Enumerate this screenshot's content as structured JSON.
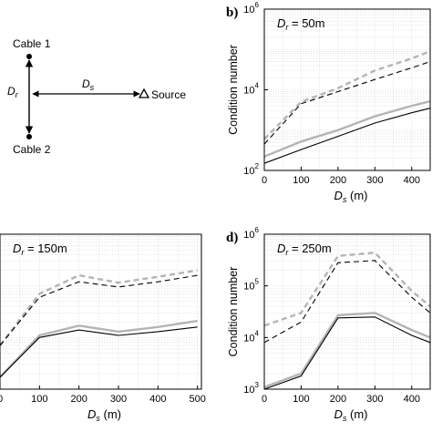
{
  "diagram": {
    "cable1_label": "Cable 1",
    "cable2_label": "Cable 2",
    "dr_label": "D",
    "dr_sub": "r",
    "ds_label": "D",
    "ds_sub": "s",
    "source_label": "Source"
  },
  "chart_data": [
    {
      "type": "line",
      "panel_letter": "b)",
      "annotation": {
        "main": "D",
        "sub": "r",
        "value": " = 50m"
      },
      "ylabel": "Condition number",
      "xlabel": {
        "main": "D",
        "sub": "s",
        "unit": " (m)"
      },
      "yscale": "log",
      "ylim": [
        100,
        1000000
      ],
      "xlim": [
        0,
        450
      ],
      "y_ticks": [
        {
          "value": 100,
          "base": "10",
          "exp": "2"
        },
        {
          "value": 10000,
          "base": "10",
          "exp": "4"
        },
        {
          "value": 1000000,
          "base": "10",
          "exp": "6"
        }
      ],
      "x_ticks": [
        {
          "value": 0,
          "label": "0"
        },
        {
          "value": 100,
          "label": "100"
        },
        {
          "value": 200,
          "label": "200"
        },
        {
          "value": 300,
          "label": "300"
        },
        {
          "value": 400,
          "label": "400"
        }
      ],
      "grid": true,
      "series": [
        {
          "style": "dashed-gray",
          "color": "#b4b4b4",
          "x": [
            0,
            100,
            200,
            300,
            400,
            450
          ],
          "y": [
            600,
            5000,
            11000,
            30000,
            60000,
            90000
          ]
        },
        {
          "style": "dashed-black",
          "color": "#000000",
          "x": [
            0,
            100,
            200,
            300,
            400,
            450
          ],
          "y": [
            450,
            4500,
            9000,
            18000,
            35000,
            50000
          ]
        },
        {
          "style": "solid-gray",
          "color": "#b4b4b4",
          "x": [
            0,
            100,
            200,
            300,
            400,
            450
          ],
          "y": [
            220,
            520,
            1000,
            2200,
            4000,
            5200
          ]
        },
        {
          "style": "solid-black",
          "color": "#000000",
          "x": [
            0,
            100,
            200,
            300,
            400,
            450
          ],
          "y": [
            150,
            330,
            700,
            1500,
            2700,
            3500
          ]
        }
      ]
    },
    {
      "type": "line",
      "panel_letter": "",
      "annotation": {
        "main": "D",
        "sub": "r",
        "value": " = 150m"
      },
      "ylabel": "",
      "xlabel": {
        "main": "D",
        "sub": "s",
        "unit": " (m)"
      },
      "yscale": "log",
      "ylim": [
        1000,
        1000000
      ],
      "xlim": [
        0,
        510
      ],
      "y_ticks": [],
      "x_ticks": [
        {
          "value": 0,
          "label": "0"
        },
        {
          "value": 100,
          "label": "100"
        },
        {
          "value": 200,
          "label": "200"
        },
        {
          "value": 300,
          "label": "300"
        },
        {
          "value": 400,
          "label": "400"
        },
        {
          "value": 500,
          "label": "500"
        }
      ],
      "grid": true,
      "series": [
        {
          "style": "dashed-gray",
          "color": "#b4b4b4",
          "x": [
            0,
            100,
            200,
            300,
            400,
            500
          ],
          "y": [
            7000,
            70000,
            160000,
            115000,
            150000,
            200000
          ]
        },
        {
          "style": "dashed-black",
          "color": "#000000",
          "x": [
            0,
            100,
            200,
            300,
            400,
            500
          ],
          "y": [
            7000,
            60000,
            120000,
            95000,
            120000,
            160000
          ]
        },
        {
          "style": "solid-gray",
          "color": "#b4b4b4",
          "x": [
            0,
            100,
            200,
            300,
            400,
            500
          ],
          "y": [
            1700,
            11000,
            17000,
            13000,
            16000,
            21000
          ]
        },
        {
          "style": "solid-black",
          "color": "#000000",
          "x": [
            0,
            100,
            200,
            300,
            400,
            500
          ],
          "y": [
            1700,
            10000,
            14000,
            11000,
            13000,
            16000
          ]
        }
      ]
    },
    {
      "type": "line",
      "panel_letter": "d)",
      "annotation": {
        "main": "D",
        "sub": "r",
        "value": " = 250m"
      },
      "ylabel": "Condition number",
      "xlabel": {
        "main": "D",
        "sub": "s",
        "unit": " (m)"
      },
      "yscale": "log",
      "ylim": [
        1000,
        1000000
      ],
      "xlim": [
        0,
        450
      ],
      "y_ticks": [
        {
          "value": 1000,
          "base": "10",
          "exp": "3"
        },
        {
          "value": 10000,
          "base": "10",
          "exp": "4"
        },
        {
          "value": 100000,
          "base": "10",
          "exp": "5"
        },
        {
          "value": 1000000,
          "base": "10",
          "exp": "6"
        }
      ],
      "x_ticks": [
        {
          "value": 0,
          "label": "0"
        },
        {
          "value": 100,
          "label": "100"
        },
        {
          "value": 200,
          "label": "200"
        },
        {
          "value": 300,
          "label": "300"
        },
        {
          "value": 400,
          "label": "400"
        }
      ],
      "grid": true,
      "series": [
        {
          "style": "dashed-gray",
          "color": "#b4b4b4",
          "x": [
            0,
            100,
            200,
            300,
            400,
            450
          ],
          "y": [
            17000,
            30000,
            380000,
            440000,
            80000,
            40000
          ]
        },
        {
          "style": "dashed-black",
          "color": "#000000",
          "x": [
            0,
            100,
            200,
            300,
            400,
            450
          ],
          "y": [
            8000,
            20000,
            280000,
            310000,
            60000,
            30000
          ]
        },
        {
          "style": "solid-gray",
          "color": "#b4b4b4",
          "x": [
            0,
            100,
            200,
            300,
            400,
            450
          ],
          "y": [
            1100,
            2000,
            27000,
            30000,
            14000,
            10000
          ]
        },
        {
          "style": "solid-black",
          "color": "#000000",
          "x": [
            0,
            100,
            200,
            300,
            400,
            450
          ],
          "y": [
            1000,
            1800,
            24000,
            25000,
            11000,
            8000
          ]
        }
      ]
    }
  ]
}
